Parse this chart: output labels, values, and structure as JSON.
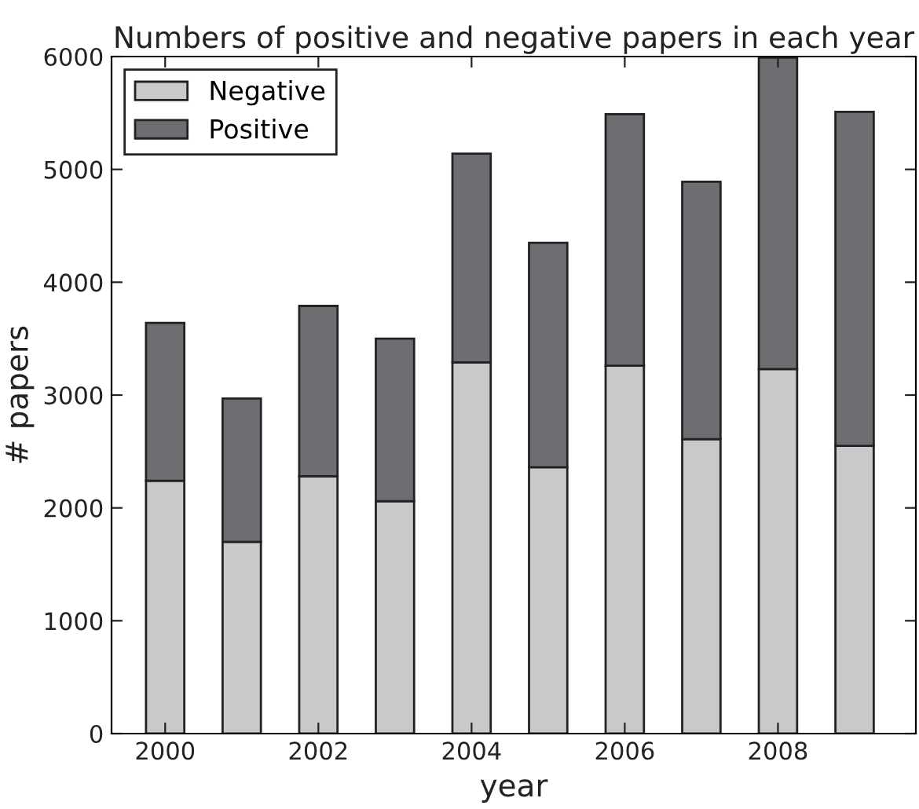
{
  "chart_data": {
    "type": "bar",
    "stacked": true,
    "title": "Numbers of positive and negative papers in each year",
    "xlabel": "year",
    "ylabel": "# papers",
    "x": [
      2000,
      2001,
      2002,
      2003,
      2004,
      2005,
      2006,
      2007,
      2008,
      2009
    ],
    "series": [
      {
        "name": "Negative",
        "color": "#c8c9cb",
        "values": [
          2240,
          1700,
          2280,
          2060,
          3290,
          2360,
          3260,
          2610,
          3230,
          2550
        ]
      },
      {
        "name": "Positive",
        "color": "#6d6e71",
        "values": [
          1400,
          1270,
          1510,
          1440,
          1850,
          1990,
          2230,
          2280,
          2760,
          2960
        ]
      }
    ],
    "xlim": [
      1999.3,
      2009.8
    ],
    "xticks": [
      2000,
      2002,
      2004,
      2006,
      2008
    ],
    "ylim": [
      0,
      6000
    ],
    "yticks": [
      0,
      1000,
      2000,
      3000,
      4000,
      5000,
      6000
    ],
    "grid": false,
    "legend": "top left"
  }
}
